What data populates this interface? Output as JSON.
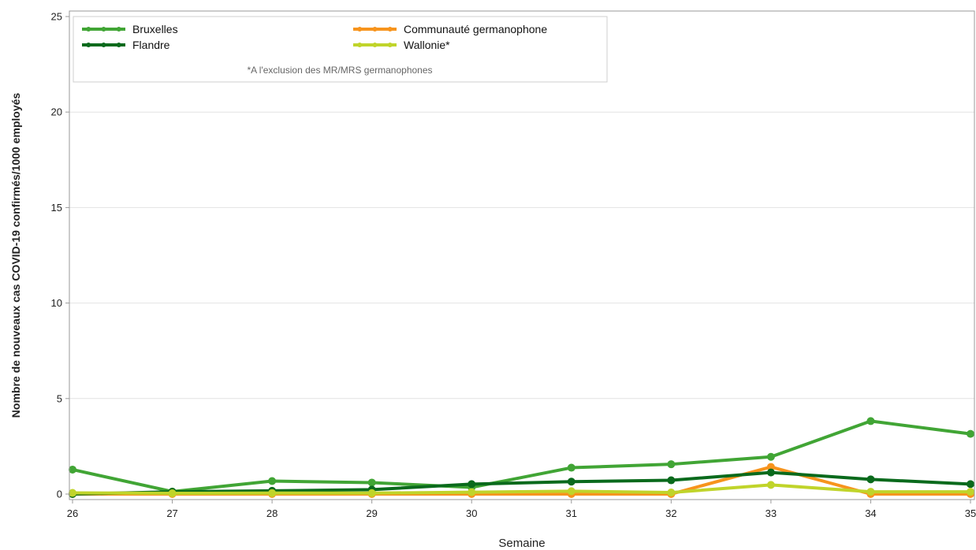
{
  "chart_data": {
    "type": "line",
    "xlabel": "Semaine",
    "ylabel": "Nombre de nouveaux cas COVID-19 confirmés/1000 employés",
    "x": [
      26,
      27,
      28,
      29,
      30,
      31,
      32,
      33,
      34,
      35
    ],
    "ylim": [
      0,
      25
    ],
    "yticks": [
      0,
      5,
      10,
      15,
      20,
      25
    ],
    "grid": "horizontal",
    "legend_placement": "top-left",
    "legend_note": "*A l'exclusion des MR/MRS germanophones",
    "series": [
      {
        "name": "Bruxelles",
        "color": "#41a535",
        "values": [
          1.28,
          0.13,
          0.68,
          0.6,
          0.35,
          1.38,
          1.56,
          1.95,
          3.82,
          3.15
        ]
      },
      {
        "name": "Communauté germanophone",
        "color": "#f7941d",
        "values": [
          0.0,
          0.0,
          0.0,
          0.0,
          0.0,
          0.0,
          0.0,
          1.42,
          0.0,
          0.0
        ]
      },
      {
        "name": "Flandre",
        "color": "#0a6a1c",
        "values": [
          0.0,
          0.12,
          0.17,
          0.23,
          0.52,
          0.65,
          0.72,
          1.13,
          0.77,
          0.52
        ]
      },
      {
        "name": "Wallonie*",
        "color": "#c0d42a",
        "values": [
          0.06,
          0.04,
          0.05,
          0.05,
          0.1,
          0.15,
          0.08,
          0.48,
          0.12,
          0.12
        ]
      }
    ]
  }
}
